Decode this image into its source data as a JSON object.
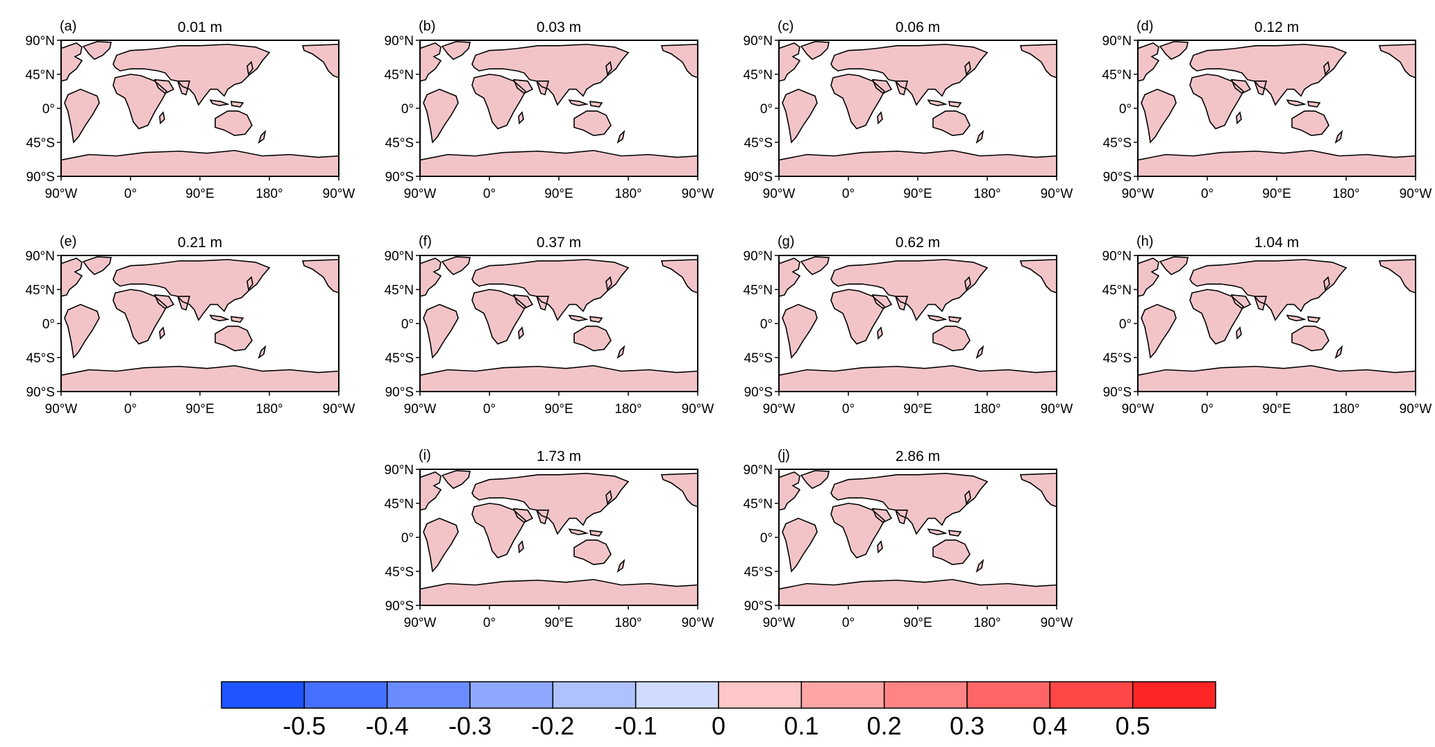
{
  "figure": {
    "panels": [
      {
        "label": "(a)",
        "title": "0.01 m"
      },
      {
        "label": "(b)",
        "title": "0.03 m"
      },
      {
        "label": "(c)",
        "title": "0.06 m"
      },
      {
        "label": "(d)",
        "title": "0.12 m"
      },
      {
        "label": "(e)",
        "title": "0.21 m"
      },
      {
        "label": "(f)",
        "title": "0.37 m"
      },
      {
        "label": "(g)",
        "title": "0.62 m"
      },
      {
        "label": "(h)",
        "title": "1.04 m"
      },
      {
        "label": "(i)",
        "title": "1.73 m"
      },
      {
        "label": "(j)",
        "title": "2.86 m"
      }
    ],
    "lat_ticks": [
      "90°N",
      "45°N",
      "0°",
      "45°S",
      "90°S"
    ],
    "lon_ticks": [
      "90°W",
      "0°",
      "90°E",
      "180°",
      "90°W"
    ],
    "colorbar": {
      "colors": [
        "#1f54ff",
        "#4670ff",
        "#6a8cff",
        "#8ea8ff",
        "#afc2ff",
        "#cfdbff",
        "#ffc7c7",
        "#ffa5a5",
        "#ff8585",
        "#ff6565",
        "#ff4747",
        "#ff2525"
      ],
      "tick_labels": [
        "-0.5",
        "-0.4",
        "-0.3",
        "-0.2",
        "-0.1",
        "0",
        "0.1",
        "0.2",
        "0.3",
        "0.4",
        "0.5"
      ]
    },
    "map_style": {
      "land_base": "#f2c4c8",
      "positive": "#ef8a8a",
      "negative": "#9fb2f6",
      "coast": "#000000"
    }
  }
}
